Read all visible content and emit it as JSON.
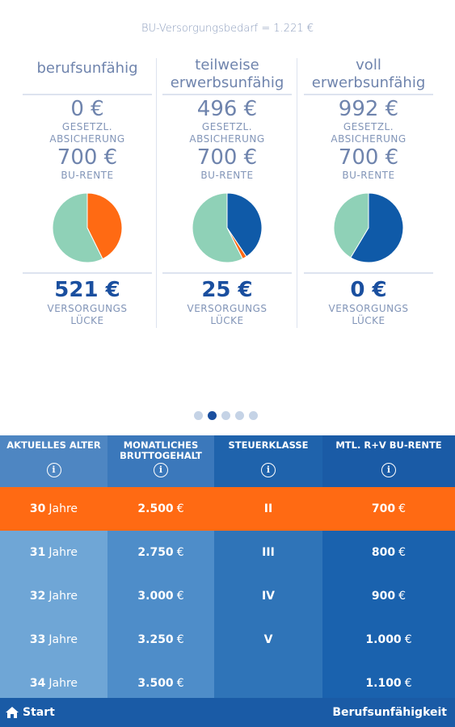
{
  "header": "BU-Versorgungsbedarf = 1.221 €",
  "columns": [
    {
      "title_line1": "berufsunfähig",
      "title_line2": "",
      "gesetzl_amount": "0 €",
      "gesetzl_label_1": "GESETZL.",
      "gesetzl_label_2": "ABSICHERUNG",
      "bu_amount": "700 €",
      "bu_label": "BU-RENTE",
      "gap_amount": "521 €",
      "gap_label_1": "VERSORGUNGS",
      "gap_label_2": "LÜCKE",
      "pie": {
        "blue_fraction": 0.0,
        "orange_fraction": 0.427,
        "green_fraction": 0.573
      }
    },
    {
      "title_line1": "teilweise",
      "title_line2": "erwerbsunfähig",
      "gesetzl_amount": "496 €",
      "gesetzl_label_1": "GESETZL.",
      "gesetzl_label_2": "ABSICHERUNG",
      "bu_amount": "700 €",
      "bu_label": "BU-RENTE",
      "gap_amount": "25 €",
      "gap_label_1": "VERSORGUNGS",
      "gap_label_2": "LÜCKE",
      "pie": {
        "blue_fraction": 0.406,
        "orange_fraction": 0.02,
        "green_fraction": 0.574
      }
    },
    {
      "title_line1": "voll",
      "title_line2": "erwerbsunfähig",
      "gesetzl_amount": "992 €",
      "gesetzl_label_1": "GESETZL.",
      "gesetzl_label_2": "ABSICHERUNG",
      "bu_amount": "700 €",
      "bu_label": "BU-RENTE",
      "gap_amount": "0 €",
      "gap_label_1": "VERSORGUNGS",
      "gap_label_2": "LÜCKE",
      "pie": {
        "blue_fraction": 0.586,
        "orange_fraction": 0.0,
        "green_fraction": 0.414
      }
    }
  ],
  "colors": {
    "blue": "#0f5aa8",
    "orange": "#ff6a13",
    "green": "#8fd1b7"
  },
  "pager": {
    "count": 5,
    "active_index": 1
  },
  "table": {
    "headers": [
      {
        "label_1": "AKTUELLES ALTER",
        "label_2": "",
        "info_icon": "i"
      },
      {
        "label_1": "MONATLICHES",
        "label_2": "BRUTTOGEHALT",
        "info_icon": "i"
      },
      {
        "label_1": "STEUERKLASSE",
        "label_2": "",
        "info_icon": "i"
      },
      {
        "label_1": "MTL. R+V BU-RENTE",
        "label_2": "",
        "info_icon": "i"
      }
    ],
    "rows": [
      {
        "age": "30",
        "age_unit": "Jahre",
        "salary": "2.500",
        "salary_unit": "€",
        "tax": "II",
        "rente": "700",
        "rente_unit": "€"
      },
      {
        "age": "31",
        "age_unit": "Jahre",
        "salary": "2.750",
        "salary_unit": "€",
        "tax": "III",
        "rente": "800",
        "rente_unit": "€"
      },
      {
        "age": "32",
        "age_unit": "Jahre",
        "salary": "3.000",
        "salary_unit": "€",
        "tax": "IV",
        "rente": "900",
        "rente_unit": "€"
      },
      {
        "age": "33",
        "age_unit": "Jahre",
        "salary": "3.250",
        "salary_unit": "€",
        "tax": "V",
        "rente": "1.000",
        "rente_unit": "€"
      },
      {
        "age": "34",
        "age_unit": "Jahre",
        "salary": "3.500",
        "salary_unit": "€",
        "tax": "",
        "rente": "1.100",
        "rente_unit": "€"
      }
    ],
    "selected_row": 0
  },
  "bottom_bar": {
    "home_icon": "home-icon",
    "start_label": "Start",
    "right_label": "Berufsunfähigkeit"
  }
}
